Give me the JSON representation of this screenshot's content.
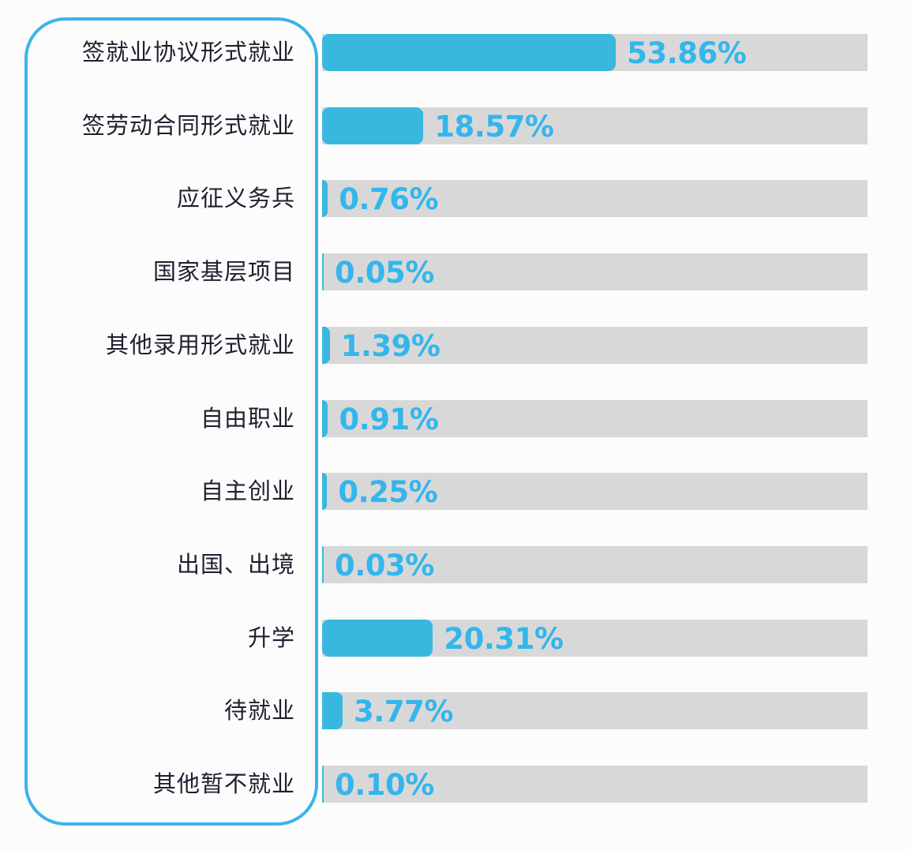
{
  "chart_data": {
    "type": "bar",
    "orientation": "horizontal",
    "title": "",
    "xlabel": "",
    "ylabel": "",
    "xlim": [
      0,
      100
    ],
    "grid": false,
    "legend": null,
    "categories": [
      "签就业协议形式就业",
      "签劳动合同形式就业",
      "应征义务兵",
      "国家基层项目",
      "其他录用形式就业",
      "自由职业",
      "自主创业",
      "出国、出境",
      "升学",
      "待就业",
      "其他暂不就业"
    ],
    "values": [
      53.86,
      18.57,
      0.76,
      0.05,
      1.39,
      0.91,
      0.25,
      0.03,
      20.31,
      3.77,
      0.1
    ],
    "value_labels": [
      "53.86%",
      "18.57%",
      "0.76%",
      "0.05%",
      "1.39%",
      "0.91%",
      "0.25%",
      "0.03%",
      "20.31%",
      "3.77%",
      "0.10%"
    ],
    "colors": {
      "bar": "#38b8df",
      "track": "#d9d8d9",
      "value_text": "#33b6ec",
      "label_box_border": "#3bb4e8",
      "label_text": "#1f1f2e"
    }
  },
  "rows": [
    {
      "label": "签就业协议形式就业",
      "value": "53.86%"
    },
    {
      "label": "签劳动合同形式就业",
      "value": "18.57%"
    },
    {
      "label": "应征义务兵",
      "value": "0.76%"
    },
    {
      "label": "国家基层项目",
      "value": "0.05%"
    },
    {
      "label": "其他录用形式就业",
      "value": "1.39%"
    },
    {
      "label": "自由职业",
      "value": "0.91%"
    },
    {
      "label": "自主创业",
      "value": "0.25%"
    },
    {
      "label": "出国、出境",
      "value": "0.03%"
    },
    {
      "label": "升学",
      "value": "20.31%"
    },
    {
      "label": "待就业",
      "value": "3.77%"
    },
    {
      "label": "其他暂不就业",
      "value": "0.10%"
    }
  ]
}
